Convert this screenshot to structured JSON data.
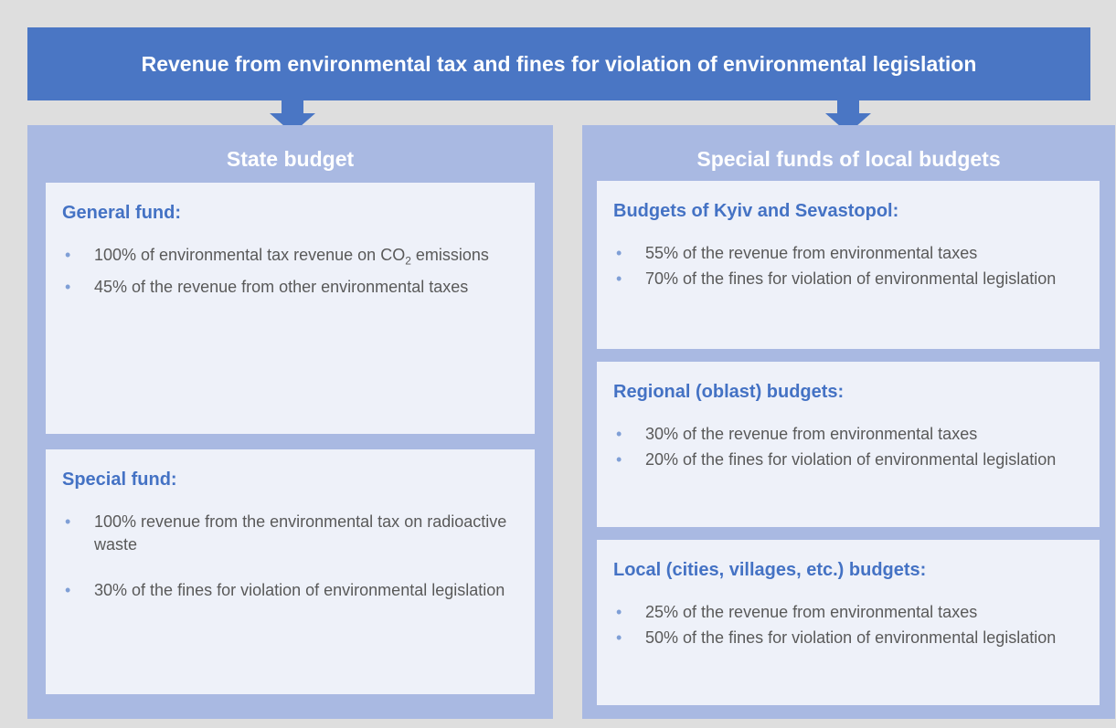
{
  "title": "Revenue from environmental tax and fines for violation of environmental legislation",
  "panels": [
    {
      "title": "State budget",
      "sections": [
        {
          "heading": "General fund:",
          "items": [
            {
              "text": "100% of environmental tax revenue on CO",
              "sub": "2",
              "rest": " emissions"
            },
            "45% of the revenue from other environmental taxes"
          ]
        },
        {
          "heading": "Special fund:",
          "items": [
            "100% revenue from the environmental tax on radioactive waste",
            "30% of the fines for violation of environmental legislation"
          ]
        }
      ]
    },
    {
      "title": "Special funds of local budgets",
      "sections": [
        {
          "heading": "Budgets of Kyiv and Sevastopol:",
          "items": [
            "55% of the revenue from environmental taxes",
            "70% of the fines for violation of environmental legislation"
          ]
        },
        {
          "heading": "Regional (oblast) budgets:",
          "items": [
            "30% of the revenue from environmental taxes",
            "20% of the fines for violation of environmental legislation"
          ]
        },
        {
          "heading": "Local (cities, villages, etc.) budgets:",
          "items": [
            "25% of the revenue from environmental taxes",
            "50% of the fines for violation of environmental legislation"
          ]
        }
      ]
    }
  ]
}
